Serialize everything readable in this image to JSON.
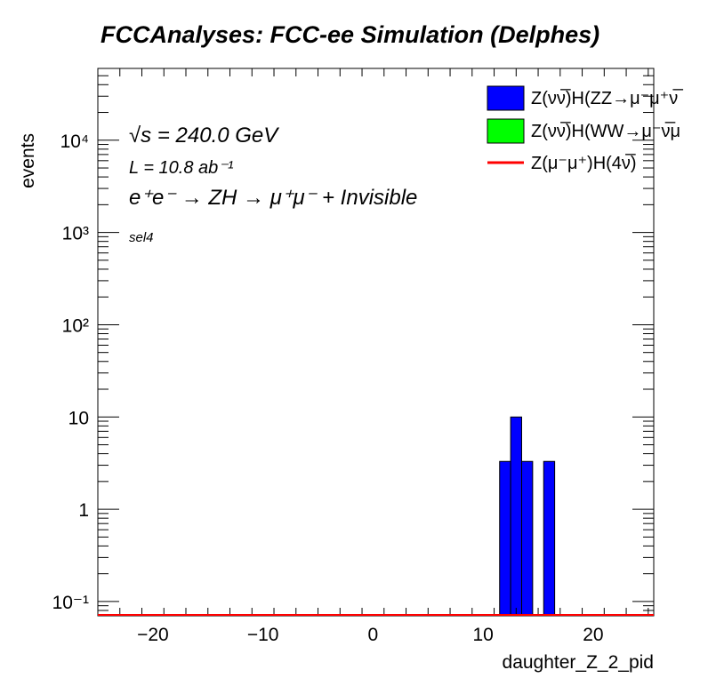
{
  "chart_data": {
    "type": "bar",
    "title": "FCCAnalyses: FCC-ee Simulation (Delphes)",
    "xlabel": "daughter_Z_2_pid",
    "ylabel": "events",
    "xlim": [
      -25,
      25.5
    ],
    "ylim": [
      0.07,
      60000
    ],
    "yscale": "log",
    "x_ticks": [
      -20,
      -10,
      0,
      10,
      20
    ],
    "x_tick_labels": [
      "−20",
      "−10",
      "0",
      "10",
      "20"
    ],
    "y_ticks": [
      0.1,
      1,
      10,
      100,
      1000,
      10000
    ],
    "y_tick_labels": [
      "10⁻¹",
      "1",
      "10",
      "10²",
      "10³",
      "10⁴"
    ],
    "annotations": {
      "energy": "√s = 240.0 GeV",
      "lumi": "L = 10.8 ab⁻¹",
      "process": "e⁺e⁻ → ZH → μ⁺μ⁻ + Invisible",
      "selection": "sel4"
    },
    "legend_position": "top-right",
    "series": [
      {
        "name": "Z(νν̅)H(ZZ→μ⁻μ⁺ν̅",
        "style": "fill",
        "color": "#0000ff",
        "bins": [
          {
            "x0": 11.5,
            "x1": 12.5,
            "value": 3.3
          },
          {
            "x0": 12.5,
            "x1": 13.5,
            "value": 10
          },
          {
            "x0": 13.5,
            "x1": 14.5,
            "value": 3.3
          },
          {
            "x0": 15.5,
            "x1": 16.5,
            "value": 3.3
          }
        ]
      },
      {
        "name": "Z(νν̅)H(WW→μ⁻ν̅μ",
        "style": "fill",
        "color": "#00ff00",
        "bins": []
      },
      {
        "name": "Z(μ⁻μ⁺)H(4ν̅)",
        "style": "line",
        "color": "#ff0000",
        "bins": []
      }
    ]
  }
}
